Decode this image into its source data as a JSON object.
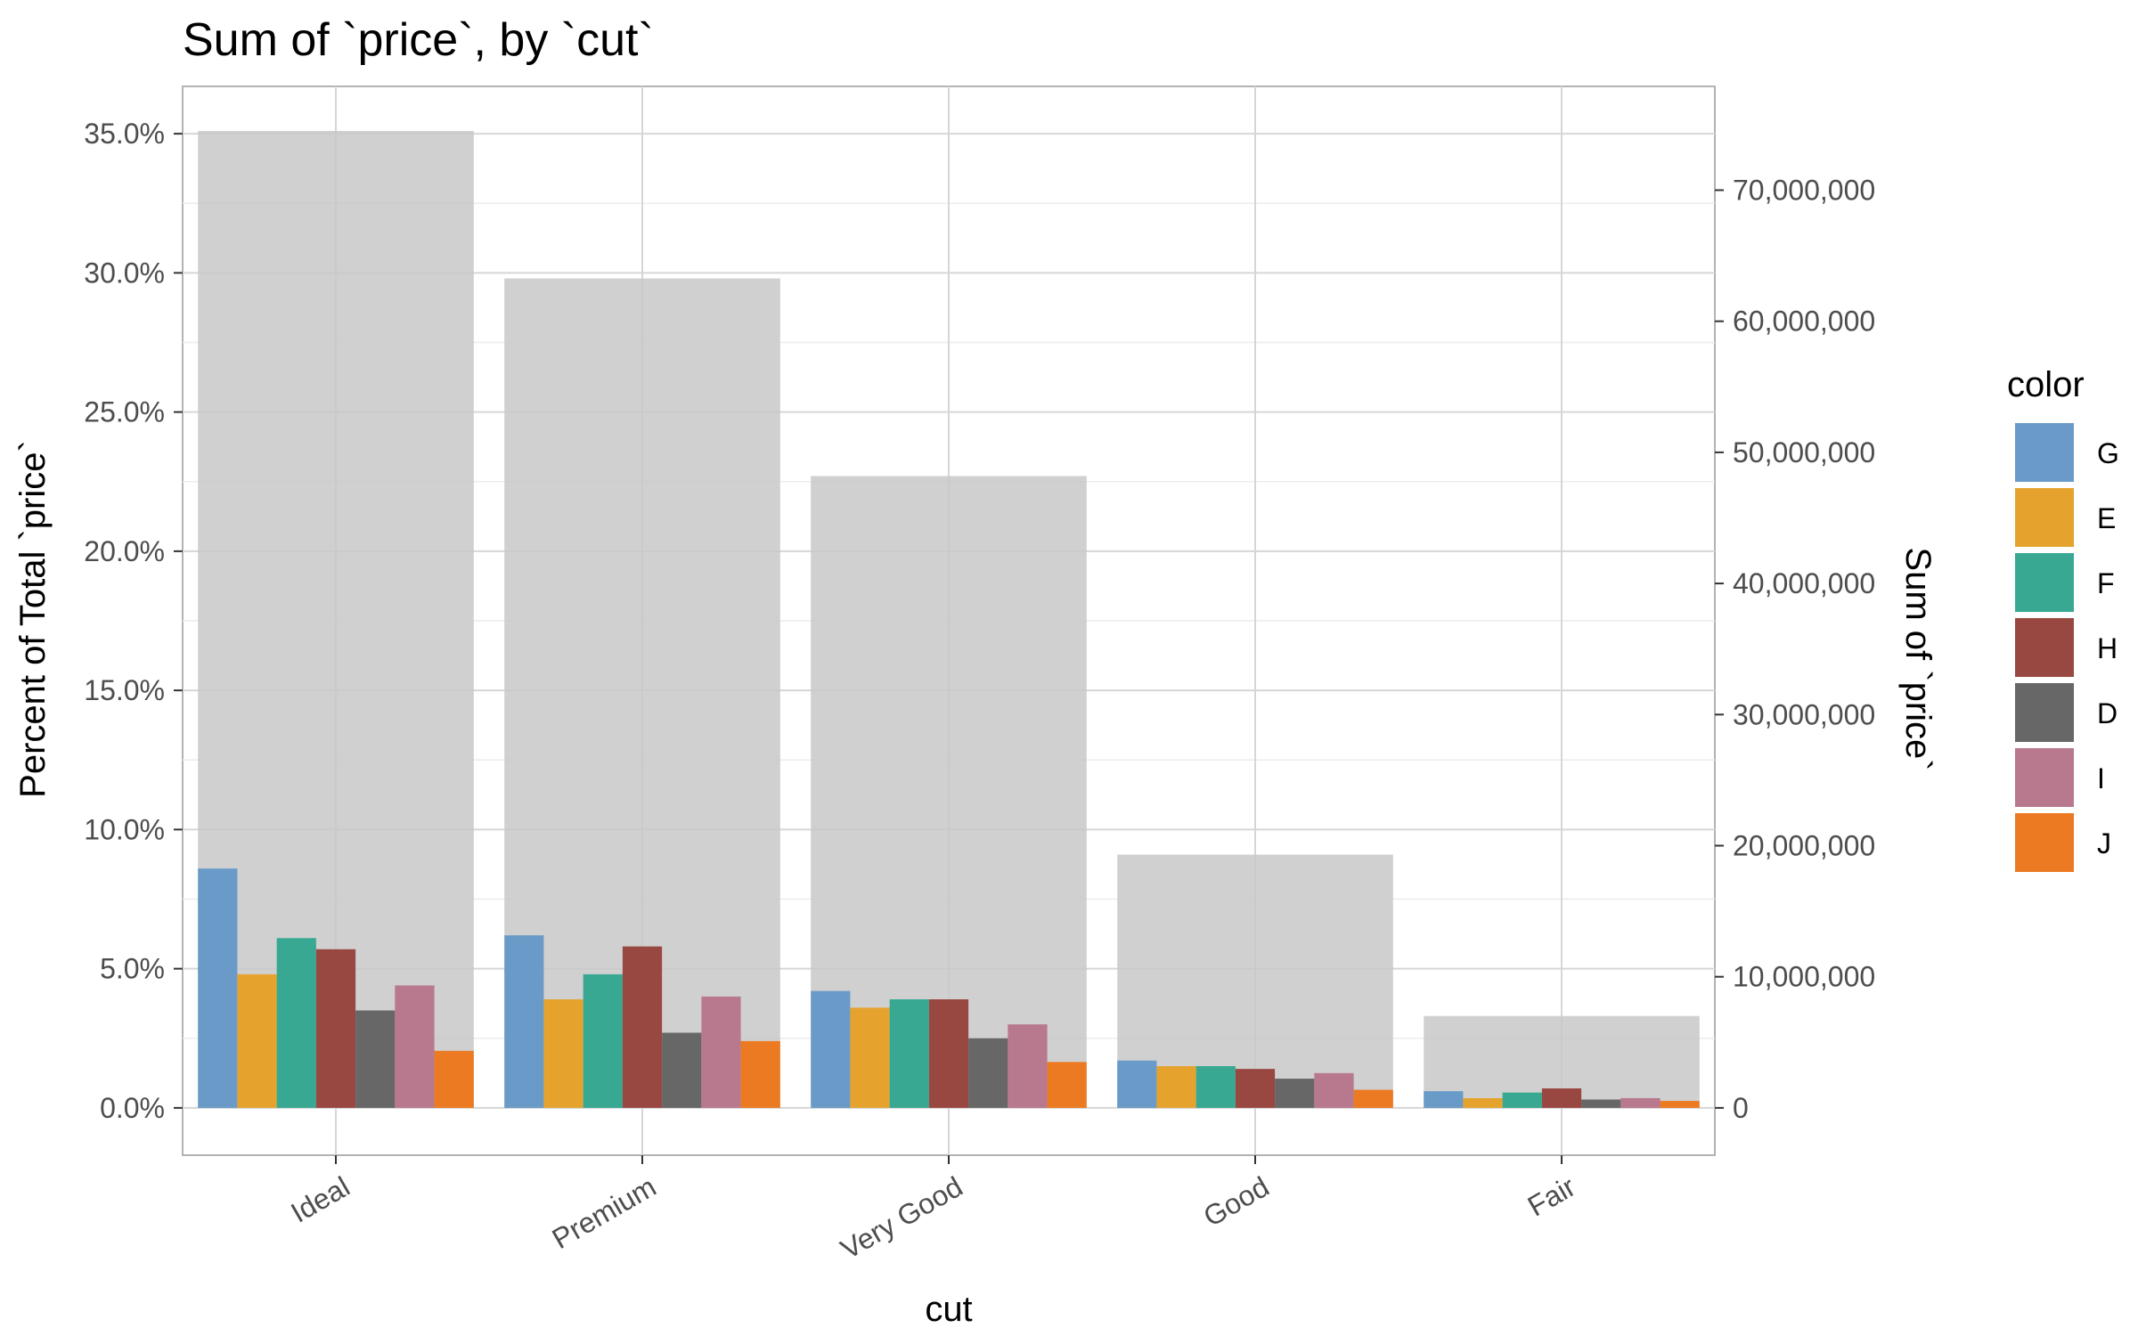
{
  "chart_data": {
    "type": "bar",
    "title": "Sum of `price`, by `cut`",
    "xlabel": "cut",
    "ylabel": "Percent of Total `price`",
    "y2label": "Sum of `price`",
    "categories": [
      "Ideal",
      "Premium",
      "Very Good",
      "Good",
      "Fair"
    ],
    "total_series": {
      "values_percent": [
        35.1,
        29.8,
        22.7,
        9.1,
        3.3
      ],
      "values_sum": [
        74500000,
        63200000,
        48100000,
        19300000,
        7000000
      ],
      "color": "#c8c8c8"
    },
    "legend_title": "color",
    "series": [
      {
        "name": "G",
        "color": "#6a9bc8",
        "values": [
          8.6,
          6.2,
          4.2,
          1.7,
          0.6
        ]
      },
      {
        "name": "E",
        "color": "#e5a32e",
        "values": [
          4.8,
          3.9,
          3.6,
          1.5,
          0.35
        ]
      },
      {
        "name": "F",
        "color": "#38a893",
        "values": [
          6.1,
          4.8,
          3.9,
          1.5,
          0.55
        ]
      },
      {
        "name": "H",
        "color": "#994841",
        "values": [
          5.7,
          5.8,
          3.9,
          1.4,
          0.7
        ]
      },
      {
        "name": "D",
        "color": "#676767",
        "values": [
          3.5,
          2.7,
          2.5,
          1.05,
          0.3
        ]
      },
      {
        "name": "I",
        "color": "#b8788d",
        "values": [
          4.4,
          4.0,
          3.0,
          1.25,
          0.35
        ]
      },
      {
        "name": "J",
        "color": "#ec7a22",
        "values": [
          2.05,
          2.4,
          1.65,
          0.65,
          0.25
        ]
      }
    ],
    "ylim": [
      -1.7,
      36.7
    ],
    "yticks": [
      0,
      5,
      10,
      15,
      20,
      25,
      30,
      35
    ],
    "ytick_labels": [
      "0.0%",
      "5.0%",
      "10.0%",
      "15.0%",
      "20.0%",
      "25.0%",
      "30.0%",
      "35.0%"
    ],
    "y2ticks": [
      0,
      10000000,
      20000000,
      30000000,
      40000000,
      50000000,
      60000000,
      70000000
    ],
    "y2tick_labels": [
      "0",
      "10,000,000",
      "20,000,000",
      "30,000,000",
      "40,000,000",
      "50,000,000",
      "60,000,000",
      "70,000,000"
    ],
    "y2_per_percent": 2123000,
    "grid": true,
    "legend_position": "right"
  }
}
